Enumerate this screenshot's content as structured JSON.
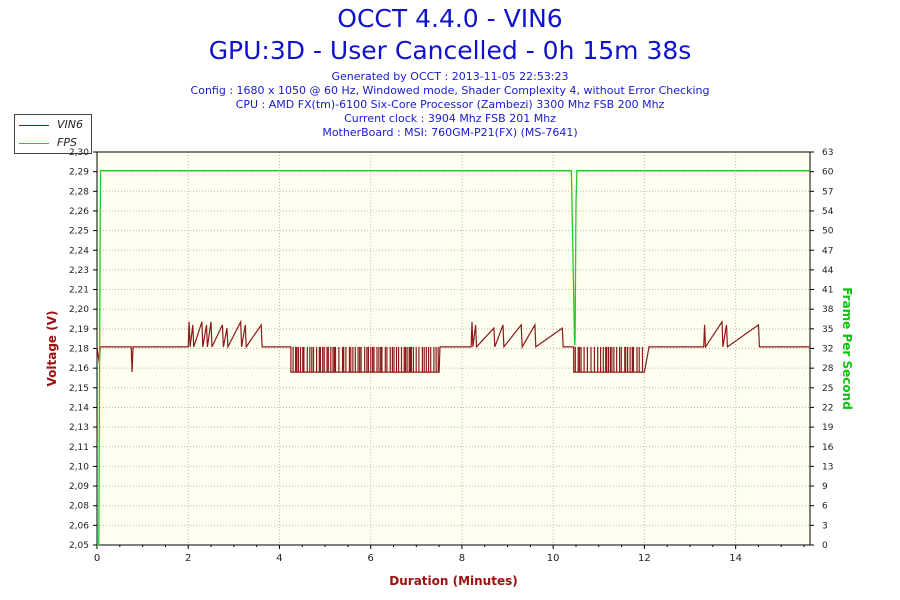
{
  "header": {
    "title": "OCCT 4.4.0 - VIN6",
    "subtitle": "GPU:3D - User Cancelled - 0h 15m 38s",
    "generated": "Generated by OCCT : 2013-11-05 22:53:23",
    "config": "Config : 1680 x 1050 @ 60 Hz, Windowed mode, Shader Complexity 4, without Error Checking",
    "cpu": "CPU : AMD FX(tm)-6100 Six-Core Processor (Zambezi) 3300 Mhz FSB 200 Mhz",
    "clock": "Current clock : 3904 Mhz FSB 201 Mhz",
    "motherboard": "MotherBoard : MSI: 760GM-P21(FX) (MS-7641)"
  },
  "colors": {
    "voltage": "#8b1a1a",
    "fps": "#22cc22",
    "plot_bg": "#fffff0",
    "grid": "#bbbbbb",
    "axis_title_left": "#a01010",
    "axis_title_right": "#10c010"
  },
  "chart_data": {
    "type": "line",
    "xlabel": "Duration (Minutes)",
    "ylabel": "Voltage (V)",
    "y2label": "Frame Per Second",
    "xlim": [
      0,
      15.63
    ],
    "ylim": [
      2.05,
      2.3
    ],
    "y2lim": [
      0,
      63
    ],
    "x_ticks": [
      "0",
      "2",
      "4",
      "6",
      "8",
      "10",
      "12",
      "14"
    ],
    "y_ticks": [
      "2,05",
      "2,06",
      "2,08",
      "2,09",
      "2,10",
      "2,11",
      "2,13",
      "2,14",
      "2,15",
      "2,16",
      "2,18",
      "2,19",
      "2,20",
      "2,21",
      "2,23",
      "2,24",
      "2,25",
      "2,26",
      "2,28",
      "2,29",
      "2,30"
    ],
    "y2_ticks": [
      "0",
      "3",
      "6",
      "9",
      "13",
      "16",
      "19",
      "22",
      "25",
      "28",
      "32",
      "35",
      "38",
      "41",
      "44",
      "47",
      "50",
      "54",
      "57",
      "60",
      "63"
    ],
    "legend": [
      "VIN6",
      "FPS"
    ],
    "grid": true,
    "series": [
      {
        "name": "VIN6",
        "baseline": 2.176,
        "points": [
          [
            0.0,
            2.176
          ],
          [
            0.05,
            2.166
          ],
          [
            0.07,
            2.176
          ],
          [
            0.75,
            2.176
          ],
          [
            0.77,
            2.16
          ],
          [
            0.79,
            2.176
          ],
          [
            2.0,
            2.176
          ],
          [
            2.02,
            2.192
          ],
          [
            2.04,
            2.176
          ],
          [
            2.1,
            2.19
          ],
          [
            2.12,
            2.176
          ],
          [
            2.3,
            2.192
          ],
          [
            2.32,
            2.176
          ],
          [
            2.4,
            2.19
          ],
          [
            2.42,
            2.176
          ],
          [
            2.5,
            2.192
          ],
          [
            2.52,
            2.176
          ],
          [
            2.75,
            2.19
          ],
          [
            2.77,
            2.176
          ],
          [
            2.85,
            2.188
          ],
          [
            2.87,
            2.176
          ],
          [
            3.15,
            2.192
          ],
          [
            3.17,
            2.176
          ],
          [
            3.25,
            2.19
          ],
          [
            3.27,
            2.176
          ],
          [
            3.6,
            2.19
          ],
          [
            3.62,
            2.176
          ],
          [
            4.25,
            2.176
          ],
          [
            4.25,
            2.16
          ],
          [
            6.0,
            2.16
          ],
          [
            7.5,
            2.16
          ],
          [
            7.52,
            2.176
          ],
          [
            8.2,
            2.176
          ],
          [
            8.22,
            2.192
          ],
          [
            8.24,
            2.176
          ],
          [
            8.3,
            2.19
          ],
          [
            8.32,
            2.176
          ],
          [
            8.7,
            2.188
          ],
          [
            8.72,
            2.176
          ],
          [
            8.9,
            2.19
          ],
          [
            8.92,
            2.176
          ],
          [
            9.3,
            2.19
          ],
          [
            9.32,
            2.176
          ],
          [
            9.6,
            2.19
          ],
          [
            9.62,
            2.176
          ],
          [
            10.2,
            2.188
          ],
          [
            10.22,
            2.176
          ],
          [
            10.45,
            2.176
          ],
          [
            10.45,
            2.16
          ],
          [
            12.0,
            2.16
          ],
          [
            12.1,
            2.176
          ],
          [
            13.3,
            2.176
          ],
          [
            13.32,
            2.19
          ],
          [
            13.34,
            2.176
          ],
          [
            13.7,
            2.192
          ],
          [
            13.72,
            2.176
          ],
          [
            13.8,
            2.19
          ],
          [
            13.82,
            2.176
          ],
          [
            14.5,
            2.19
          ],
          [
            14.52,
            2.176
          ],
          [
            15.63,
            2.176
          ]
        ],
        "noise_segments": [
          [
            4.25,
            7.5
          ],
          [
            10.45,
            12.0
          ]
        ],
        "noise_low": 2.16,
        "noise_high": 2.176
      },
      {
        "name": "FPS",
        "points": [
          [
            0.0,
            0
          ],
          [
            0.04,
            0
          ],
          [
            0.07,
            52
          ],
          [
            0.08,
            60
          ],
          [
            10.4,
            60
          ],
          [
            10.47,
            32
          ],
          [
            10.48,
            33
          ],
          [
            10.5,
            55
          ],
          [
            10.52,
            60
          ],
          [
            15.63,
            60
          ]
        ]
      }
    ]
  }
}
